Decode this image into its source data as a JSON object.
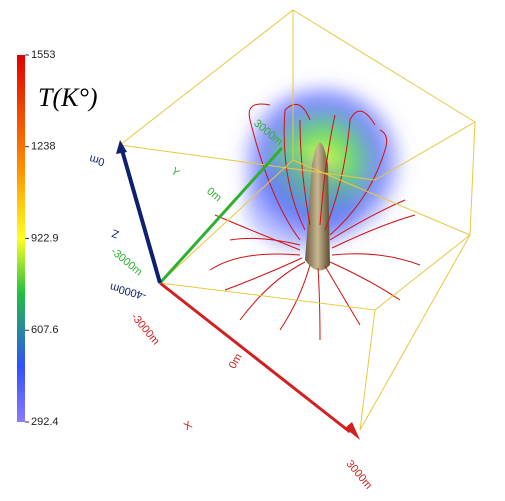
{
  "colorbar": {
    "title": "T(K°)",
    "ticks": [
      1553,
      1238,
      922.9,
      607.6,
      292.4
    ]
  },
  "axes": {
    "x": {
      "label": "X",
      "ticks": [
        "-3000m",
        "0m",
        "3000m"
      ]
    },
    "y": {
      "label": "Y",
      "ticks": [
        "-3000m",
        "0m",
        "3000m"
      ]
    },
    "z": {
      "label": "Z",
      "ticks": [
        "-4000m",
        "0m"
      ]
    }
  }
}
